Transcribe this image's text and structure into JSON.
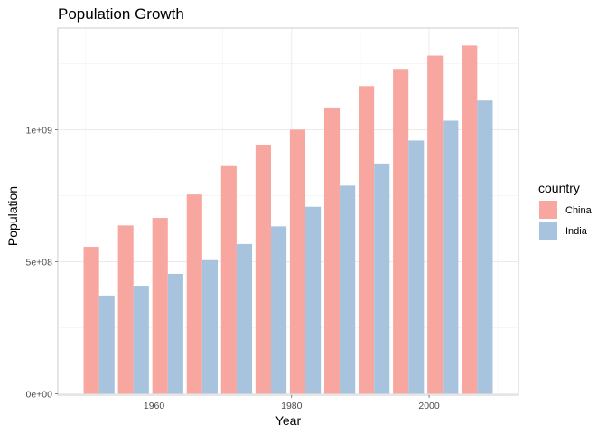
{
  "chart_data": {
    "type": "bar",
    "title": "Population Growth",
    "xlabel": "Year",
    "ylabel": "Population",
    "x": [
      1952,
      1957,
      1962,
      1967,
      1972,
      1977,
      1982,
      1987,
      1992,
      1997,
      2002,
      2007
    ],
    "series": [
      {
        "name": "China",
        "color": "#F8A6A0",
        "values": [
          556263527,
          637408000,
          665770000,
          754550000,
          862030000,
          943455000,
          1000281000,
          1084035000,
          1164970000,
          1230075000,
          1280400000,
          1318683096
        ]
      },
      {
        "name": "India",
        "color": "#A7C3DD",
        "values": [
          372000000,
          409000000,
          454000000,
          506000000,
          567000000,
          634000000,
          708000000,
          788000000,
          872000000,
          959000000,
          1034172547,
          1110396331
        ]
      }
    ],
    "x_ticks": [
      1960,
      1980,
      2000
    ],
    "x_tick_labels": [
      "1960",
      "1980",
      "2000"
    ],
    "y_ticks": [
      0,
      500000000,
      1000000000
    ],
    "y_tick_labels": [
      "0e+00",
      "5e+08",
      "1e+09"
    ],
    "xlim": [
      1946,
      2013
    ],
    "ylim": [
      -5000000,
      1385000000
    ],
    "grid": true,
    "legend": {
      "title": "country",
      "position": "right"
    }
  }
}
